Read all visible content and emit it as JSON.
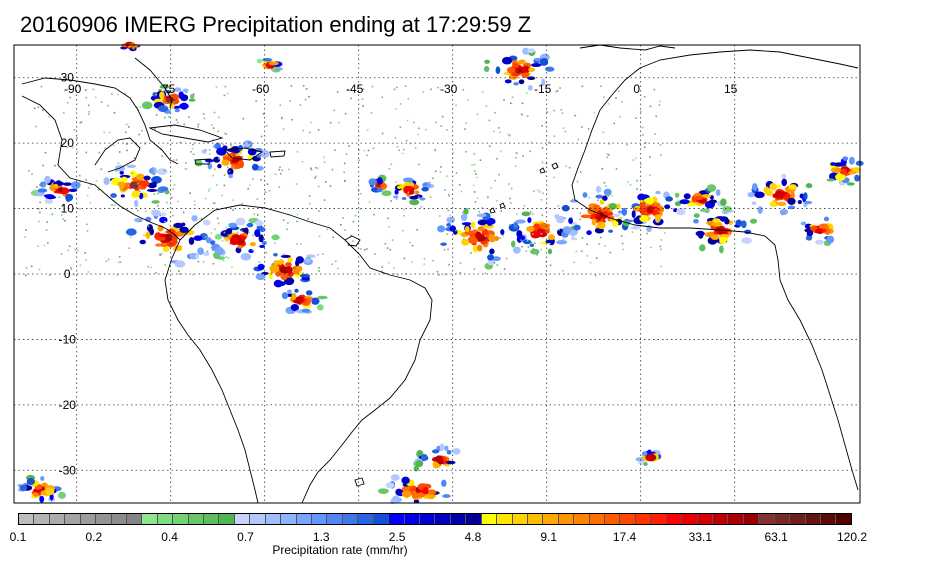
{
  "title": "20160906 IMERG Precipitation ending at 17:29:59 Z",
  "map": {
    "lon_range": [
      -100,
      35
    ],
    "lat_range": [
      -35,
      35
    ],
    "lon_labels": [
      "-90",
      "-75",
      "-60",
      "-45",
      "-30",
      "-15",
      "0",
      "15"
    ],
    "lat_labels": [
      "30",
      "20",
      "10",
      "0",
      "-10",
      "-20",
      "-30"
    ],
    "grid": "dotted",
    "background_color": "#ffffff",
    "coastline_color": "#000000"
  },
  "colorbar": {
    "title": "Precipitation rate (mm/hr)",
    "tick_labels": [
      "0.1",
      "0.2",
      "0.4",
      "0.7",
      "1.3",
      "2.5",
      "4.8",
      "9.1",
      "17.4",
      "33.1",
      "63.1",
      "120.2"
    ],
    "colors": [
      "#bdbdbd",
      "#b4b4b4",
      "#acacac",
      "#a4a4a4",
      "#9c9c9c",
      "#949494",
      "#8c8c8c",
      "#848484",
      "#8ee68e",
      "#80dc80",
      "#74d274",
      "#68c868",
      "#5cbe5c",
      "#50b450",
      "#c8d2ff",
      "#b4c8ff",
      "#a0beff",
      "#8cb4ff",
      "#78a5ff",
      "#6496ff",
      "#5087f5",
      "#3c78eb",
      "#2864e1",
      "#1450d7",
      "#0000ff",
      "#0000e6",
      "#0000d2",
      "#0000be",
      "#0000aa",
      "#000096",
      "#ffff00",
      "#ffe600",
      "#ffd200",
      "#ffbe00",
      "#ffaa00",
      "#ff9600",
      "#ff8200",
      "#ff6e00",
      "#ff5a00",
      "#ff4600",
      "#ff3200",
      "#ff1e00",
      "#ff0000",
      "#e60000",
      "#d20000",
      "#be0000",
      "#aa0000",
      "#960000",
      "#823232",
      "#782828",
      "#6e1e1e",
      "#641414",
      "#5a0a0a",
      "#500000"
    ]
  }
}
